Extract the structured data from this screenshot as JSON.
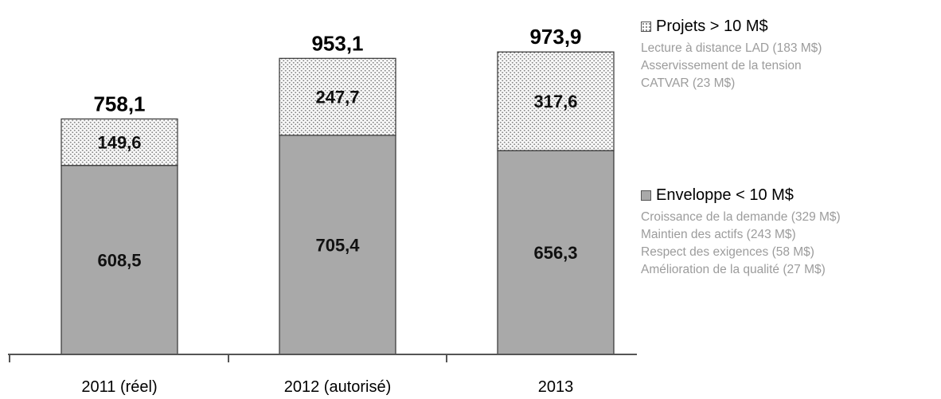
{
  "chart_data": {
    "type": "bar",
    "stacked": true,
    "categories": [
      "2011 (réel)",
      "2012 (autorisé)",
      "2013"
    ],
    "series": [
      {
        "name": "Enveloppe < 10 M$",
        "values": [
          608.5,
          705.4,
          656.3
        ],
        "labels": [
          "608,5",
          "705,4",
          "656,3"
        ],
        "color": "#a9a9a9",
        "pattern": "solid"
      },
      {
        "name": "Projets > 10 M$",
        "values": [
          149.6,
          247.7,
          317.6
        ],
        "labels": [
          "149,6",
          "247,7",
          "317,6"
        ],
        "color": "#ffffff",
        "pattern": "dotted"
      }
    ],
    "totals": [
      758.1,
      953.1,
      973.9
    ],
    "total_labels": [
      "758,1",
      "953,1",
      "973,9"
    ],
    "ylim": [
      0,
      1050
    ],
    "grid": false,
    "legend_position": "right",
    "title": "",
    "xlabel": "",
    "ylabel": ""
  },
  "legend": {
    "projets": {
      "title": "Projets > 10 M$",
      "icon": "dotted-square",
      "items": [
        "Lecture à distance LAD (183 M$)",
        "Asservissement de la tension",
        "CATVAR (23 M$)"
      ]
    },
    "enveloppe": {
      "title": "Enveloppe < 10 M$",
      "icon": "gray-square",
      "items": [
        "Croissance de la demande (329 M$)",
        "Maintien des actifs (243 M$)",
        "Respect des exigences (58 M$)",
        "Amélioration de la qualité (27 M$)"
      ]
    }
  }
}
